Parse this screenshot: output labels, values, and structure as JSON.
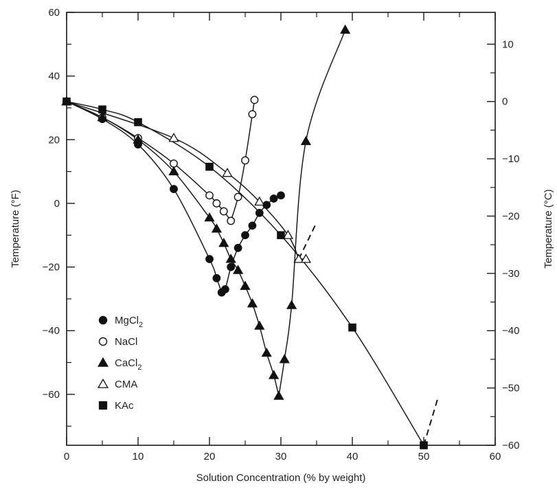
{
  "chart_data": {
    "type": "scatter",
    "title": "",
    "xlabel": "Solution Concentration (% by weight)",
    "ylabel_left": "Temperature (°F)",
    "ylabel_right": "Temperature (°C)",
    "xlim": [
      0,
      60
    ],
    "ylim_left": [
      -76,
      60
    ],
    "ylim_right": [
      -60,
      15.6
    ],
    "x_ticks": [
      "0",
      "10",
      "20",
      "30",
      "40",
      "50",
      "60"
    ],
    "y_ticks_left": [
      "60",
      "40",
      "20",
      "0",
      "-20",
      "-40",
      "-60"
    ],
    "y_ticks_right": [
      "10",
      "0",
      "-10",
      "-20",
      "-30",
      "-40",
      "-50",
      "-60"
    ],
    "grid": false,
    "legend_position": "lower-left",
    "series": [
      {
        "name": "MgCl",
        "subscript": "2",
        "marker": "filled-circle",
        "points": [
          [
            0,
            32
          ],
          [
            5,
            26.5
          ],
          [
            10,
            18.5
          ],
          [
            15,
            4.5
          ],
          [
            20,
            -17.5
          ],
          [
            21,
            -23.5
          ],
          [
            21.7,
            -28
          ],
          [
            22.2,
            -27
          ],
          [
            23,
            -20
          ],
          [
            24,
            -14
          ],
          [
            25,
            -10
          ],
          [
            26,
            -7
          ],
          [
            27,
            -3
          ],
          [
            28,
            -0.5
          ],
          [
            29,
            1.5
          ],
          [
            30,
            2.5
          ]
        ]
      },
      {
        "name": "NaCl",
        "subscript": "",
        "marker": "open-circle",
        "points": [
          [
            0,
            32
          ],
          [
            5,
            27
          ],
          [
            10,
            20.5
          ],
          [
            15,
            12.5
          ],
          [
            20,
            2.5
          ],
          [
            21,
            0
          ],
          [
            22,
            -2.5
          ],
          [
            23,
            -5.5
          ],
          [
            24,
            2
          ],
          [
            25,
            13.5
          ],
          [
            26,
            28
          ],
          [
            26.3,
            32.5
          ]
        ]
      },
      {
        "name": "CaCl",
        "subscript": "2",
        "marker": "filled-triangle",
        "points": [
          [
            0,
            32
          ],
          [
            5,
            27
          ],
          [
            10,
            20
          ],
          [
            15,
            10
          ],
          [
            20,
            -4.5
          ],
          [
            21,
            -8
          ],
          [
            22,
            -12.5
          ],
          [
            23,
            -17.5
          ],
          [
            24,
            -21
          ],
          [
            25,
            -26
          ],
          [
            26,
            -31.5
          ],
          [
            27,
            -38.5
          ],
          [
            28,
            -47
          ],
          [
            29,
            -54
          ],
          [
            29.7,
            -60.5
          ],
          [
            30.5,
            -49
          ],
          [
            31.5,
            -32
          ],
          [
            33.5,
            19.5
          ],
          [
            39,
            54.5
          ]
        ]
      },
      {
        "name": "CMA",
        "subscript": "",
        "marker": "open-triangle",
        "points": [
          [
            0,
            32
          ],
          [
            15,
            20.5
          ],
          [
            22.5,
            9.5
          ],
          [
            27,
            0.5
          ],
          [
            31,
            -10
          ],
          [
            32.5,
            -17.5
          ],
          [
            33.5,
            -17.5
          ]
        ]
      },
      {
        "name": "KAc",
        "subscript": "",
        "marker": "filled-square",
        "points": [
          [
            0,
            32
          ],
          [
            5,
            29.5
          ],
          [
            10,
            25.5
          ],
          [
            20,
            11.5
          ],
          [
            30,
            -10
          ],
          [
            40,
            -39
          ],
          [
            50,
            -76
          ]
        ]
      }
    ],
    "dashed_extensions": [
      [
        [
          32.5,
          -17.5
        ],
        [
          35,
          -6
        ]
      ],
      [
        [
          50,
          -76
        ],
        [
          52,
          -61
        ]
      ]
    ]
  }
}
